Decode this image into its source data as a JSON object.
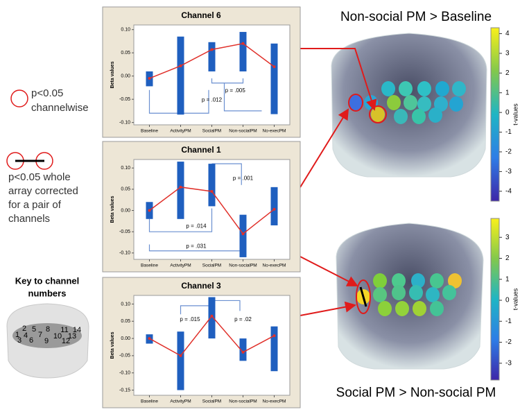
{
  "chart_data": [
    {
      "type": "range_bar",
      "title": "Channel 6",
      "ylabel": "Beta values",
      "categories": [
        "Baseline",
        "ActivityPM",
        "SocialPM",
        "Non-socialPM",
        "No-execPM"
      ],
      "lows": [
        -0.022,
        -0.083,
        0.01,
        0.01,
        -0.082
      ],
      "highs": [
        0.01,
        0.085,
        0.073,
        0.095,
        0.07
      ],
      "means": [
        -0.005,
        0.022,
        0.057,
        0.07,
        0.02
      ],
      "bar_color": "#1f5fbf",
      "line_color": "#e0302a",
      "ylim": [
        -0.105,
        0.11
      ],
      "yticks": [
        {
          "value": 0.1,
          "label": "0.10"
        },
        0.05,
        {
          "value": 0,
          "label": "0.00"
        },
        -0.05,
        {
          "value": -0.1,
          "label": "-0.10"
        }
      ],
      "annotations": [
        "p = .012",
        "p = .005"
      ]
    },
    {
      "type": "range_bar",
      "title": "Channel 1",
      "ylabel": "Beta values",
      "categories": [
        "Baseline",
        "ActivityPM",
        "SocialPM",
        "Non-socialPM",
        "No-execPM"
      ],
      "lows": [
        -0.02,
        -0.02,
        0.01,
        -0.11,
        -0.035
      ],
      "highs": [
        0.02,
        0.115,
        0.11,
        -0.01,
        0.055
      ],
      "means": [
        0,
        0.055,
        0.045,
        -0.055,
        0.003
      ],
      "bar_color": "#1f5fbf",
      "line_color": "#e0302a",
      "ylim": [
        -0.115,
        0.12
      ],
      "yticks": [
        {
          "value": 0.1,
          "label": "0.10"
        },
        0.05,
        {
          "value": 0,
          "label": "0.00"
        },
        -0.05,
        {
          "value": -0.1,
          "label": "-0.10"
        }
      ],
      "annotations": [
        "p = .001",
        "p = .014",
        "p = .031"
      ]
    },
    {
      "type": "range_bar",
      "title": "Channel 3",
      "ylabel": "Beta values",
      "categories": [
        "Baseline",
        "ActivityPM",
        "SocialPM",
        "Non-socialPM",
        "No-execPM"
      ],
      "lows": [
        -0.015,
        -0.15,
        0,
        -0.065,
        -0.095
      ],
      "highs": [
        0.012,
        0.02,
        0.12,
        0,
        0.035
      ],
      "means": [
        0,
        -0.05,
        0.065,
        -0.04,
        0.008
      ],
      "bar_color": "#1f5fbf",
      "line_color": "#e0302a",
      "ylim": [
        -0.165,
        0.125
      ],
      "yticks": [
        {
          "value": 0.1,
          "label": "0.10"
        },
        0.05,
        {
          "value": 0,
          "label": "0.00"
        },
        -0.05,
        {
          "value": -0.1,
          "label": "-0.10"
        },
        -0.15
      ],
      "annotations": [
        "p = .015",
        "p = .02"
      ]
    }
  ],
  "legend": {
    "channelwise": [
      "p<0.05",
      "channelwise"
    ],
    "pair": [
      "p<0.05 whole",
      "array corrected",
      "for a pair of",
      "channels"
    ]
  },
  "key": {
    "title": [
      "Key to channel",
      "numbers"
    ],
    "channels": [
      1,
      2,
      3,
      4,
      5,
      6,
      7,
      8,
      9,
      10,
      11,
      12,
      13,
      14
    ]
  },
  "brain_maps": [
    {
      "title": "Non-social PM > Baseline",
      "colorbar": {
        "label": "t-values",
        "lim": [
          -4.5,
          4.3
        ],
        "ticks": [
          4,
          3,
          2,
          1,
          0,
          -1,
          -2,
          -3,
          -4
        ]
      }
    },
    {
      "title": "Social PM > Non-social PM",
      "colorbar": {
        "label": "t-values",
        "lim": [
          -3.8,
          3.9
        ],
        "ticks": [
          3,
          2,
          1,
          0,
          -1,
          -2,
          -3
        ]
      }
    }
  ]
}
